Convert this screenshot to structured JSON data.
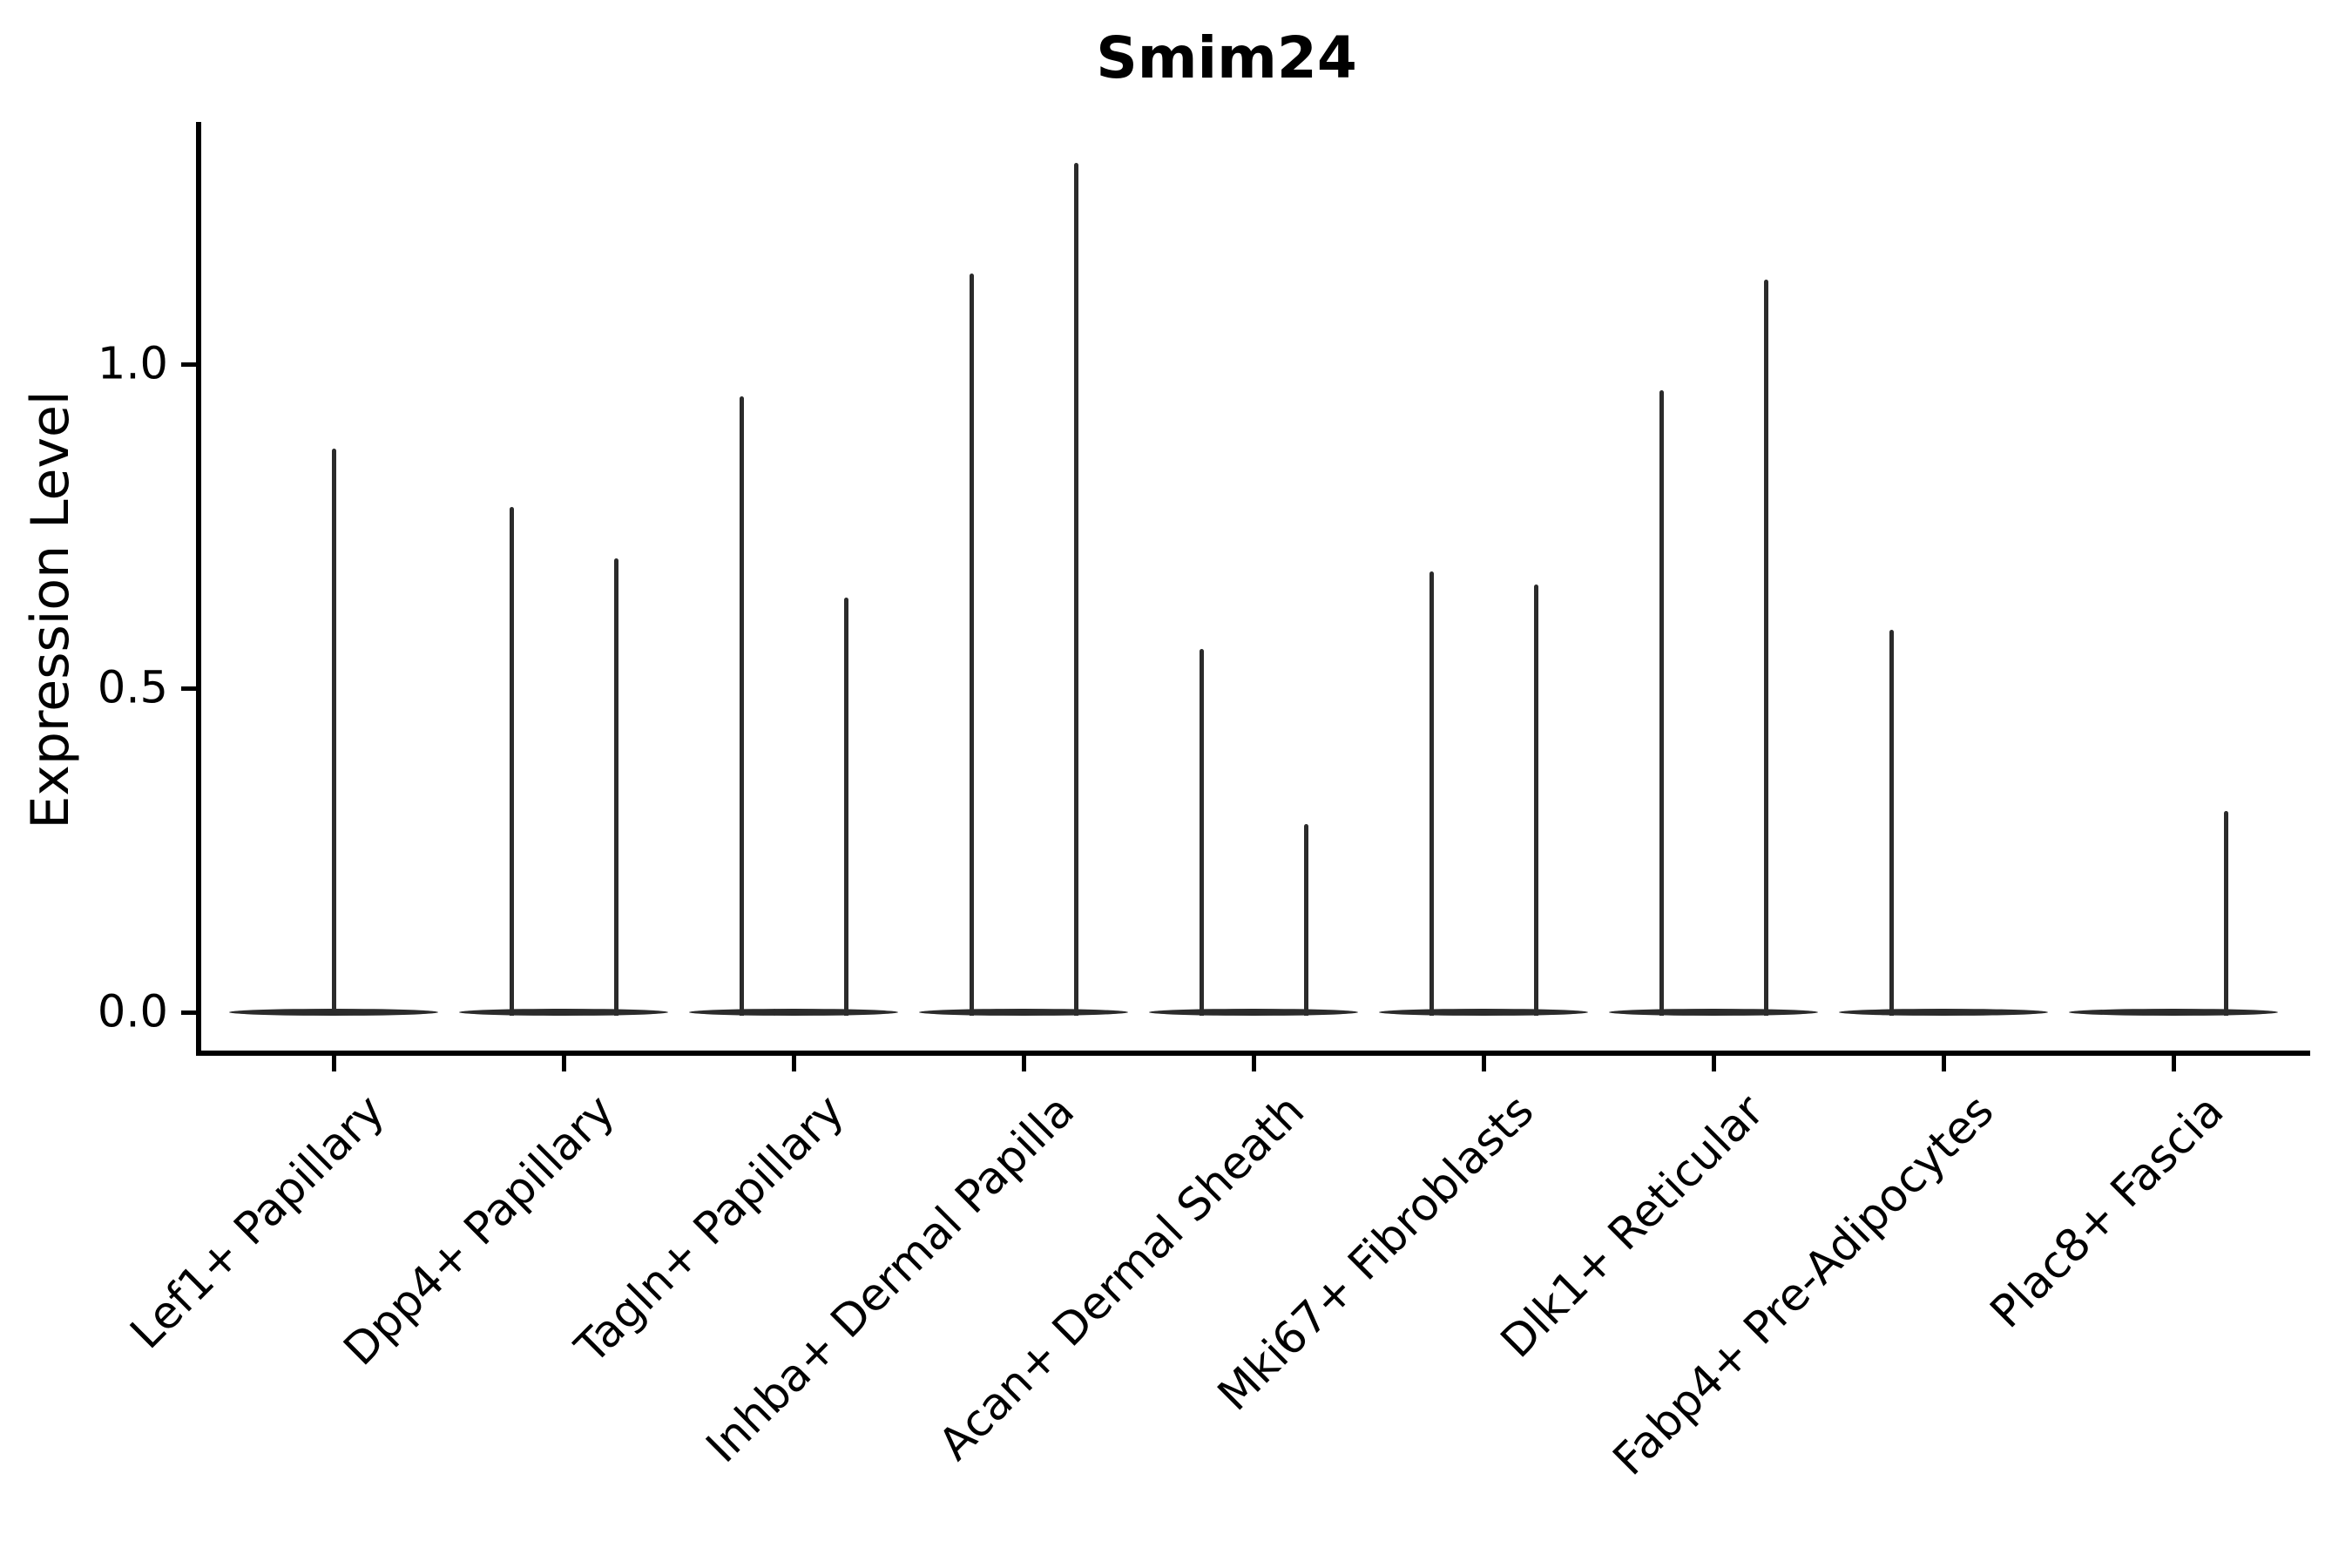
{
  "figure": {
    "title": "Smim24"
  },
  "chart_data": {
    "type": "violin",
    "title": "Smim24",
    "xlabel": "",
    "ylabel": "Expression Level",
    "yticks": [
      "0.0",
      "0.5",
      "1.0"
    ],
    "ytick_values": [
      0.0,
      0.5,
      1.0
    ],
    "ylim": [
      -0.06,
      1.41
    ],
    "grid": false,
    "legend": "none",
    "axis_color": "#000000",
    "violin_color": "#2b2b2b",
    "categories": [
      "Lef1+ Papillary",
      "Dpp4+ Papillary",
      "Tagln+ Papillary",
      "Inhba+ Dermal Papilla",
      "Acan+ Dermal Sheath",
      "Mki67+ Fibroblasts",
      "Dlk1+ Reticular",
      "Fabp4+ Pre-Adipocytes",
      "Plac8+ Fascia"
    ],
    "violins": [
      {
        "category": "Lef1+ Papillary",
        "spikes": [
          {
            "position": "center",
            "max_expression": 0.87
          }
        ]
      },
      {
        "category": "Dpp4+ Papillary",
        "spikes": [
          {
            "position": "left",
            "max_expression": 0.78
          },
          {
            "position": "right",
            "max_expression": 0.7
          }
        ]
      },
      {
        "category": "Tagln+ Papillary",
        "spikes": [
          {
            "position": "left",
            "max_expression": 0.95
          },
          {
            "position": "right",
            "max_expression": 0.64
          }
        ]
      },
      {
        "category": "Inhba+ Dermal Papilla",
        "spikes": [
          {
            "position": "left",
            "max_expression": 1.14
          },
          {
            "position": "right",
            "max_expression": 1.31
          }
        ]
      },
      {
        "category": "Acan+ Dermal Sheath",
        "spikes": [
          {
            "position": "left",
            "max_expression": 0.56
          },
          {
            "position": "right",
            "max_expression": 0.29
          }
        ]
      },
      {
        "category": "Mki67+ Fibroblasts",
        "spikes": [
          {
            "position": "left",
            "max_expression": 0.68
          },
          {
            "position": "right",
            "max_expression": 0.66
          }
        ]
      },
      {
        "category": "Dlk1+ Reticular",
        "spikes": [
          {
            "position": "left",
            "max_expression": 0.96
          },
          {
            "position": "right",
            "max_expression": 1.13
          }
        ]
      },
      {
        "category": "Fabp4+ Pre-Adipocytes",
        "spikes": [
          {
            "position": "left",
            "max_expression": 0.59
          }
        ]
      },
      {
        "category": "Plac8+ Fascia",
        "spikes": [
          {
            "position": "right",
            "max_expression": 0.31
          }
        ]
      }
    ],
    "baseline_value": 0.0
  }
}
